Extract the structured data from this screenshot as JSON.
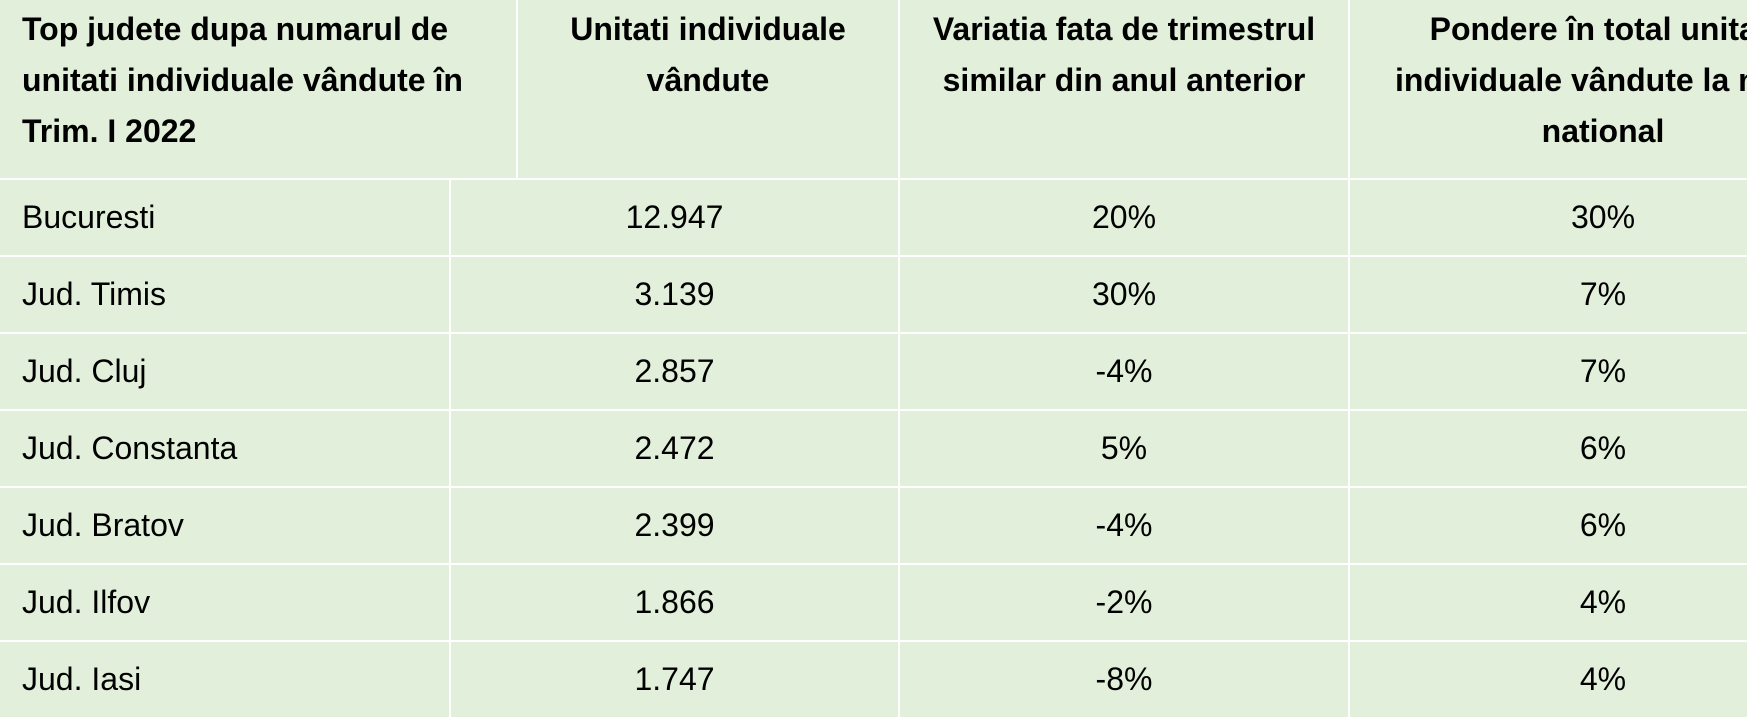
{
  "table": {
    "header": [
      "Top judete dupa numarul de unitati individuale vândute în Trim. I 2022",
      "Unitati individuale vândute",
      "Variatia fata de trimestrul similar din anul anterior",
      "Pondere în total unitati individuale vândute la nivel national"
    ],
    "rows": [
      [
        "Bucuresti",
        "12.947",
        "20%",
        "30%"
      ],
      [
        "Jud. Timis",
        "3.139",
        "30%",
        "7%"
      ],
      [
        "Jud. Cluj",
        "2.857",
        "-4%",
        "7%"
      ],
      [
        "Jud. Constanta",
        "2.472",
        "5%",
        "6%"
      ],
      [
        "Jud. Bratov",
        "2.399",
        "-4%",
        "6%"
      ],
      [
        "Jud. Ilfov",
        "1.866",
        "-2%",
        "4%"
      ],
      [
        "Jud. Iasi",
        "1.747",
        "-8%",
        "4%"
      ]
    ]
  }
}
